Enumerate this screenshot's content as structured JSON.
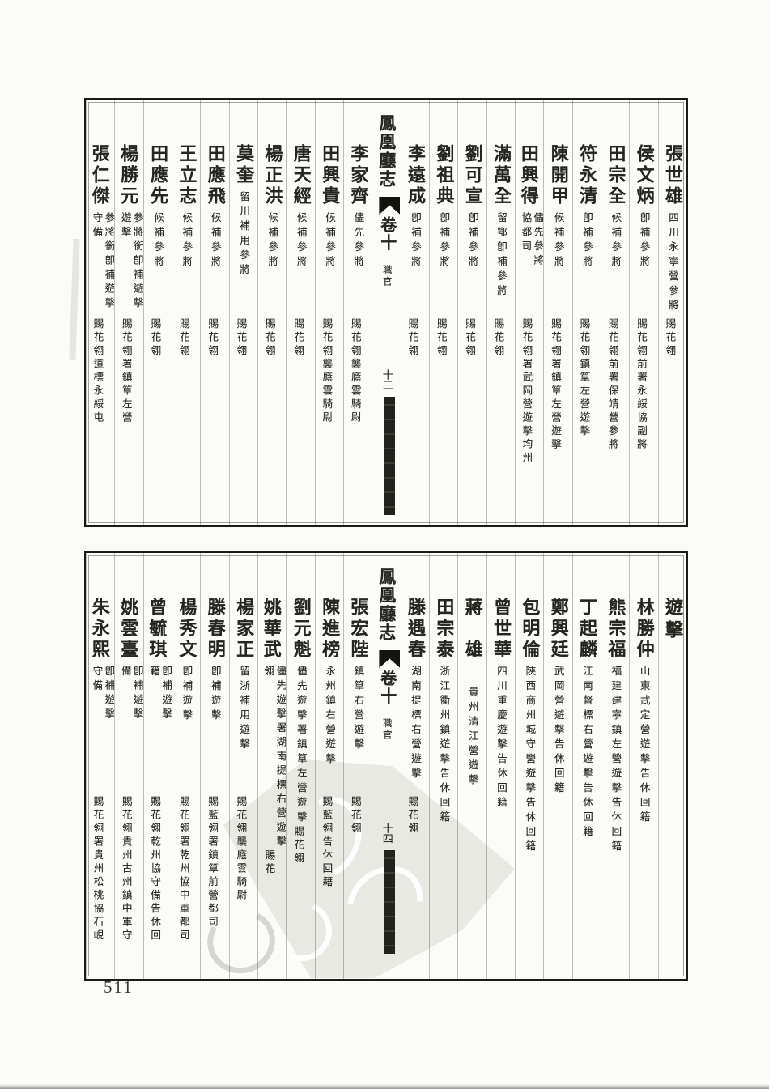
{
  "page": {
    "number": "511"
  },
  "book": {
    "title": "鳳凰廳志",
    "chapter": "卷十",
    "section": "職官"
  },
  "colors": {
    "ink": "#26251f",
    "paper": "#fbfbf8",
    "bar": "#23231e"
  },
  "blocks": [
    {
      "id": "top",
      "folio": "十三",
      "columns": [
        {
          "type": "entry",
          "name": "張世雄",
          "note": "四川永寧營參將",
          "honor": "賜花翎"
        },
        {
          "type": "entry",
          "name": "侯文炳",
          "note": "卽補參將",
          "honor": "賜花翎前署永綏協副將"
        },
        {
          "type": "entry",
          "name": "田宗全",
          "note": "候補參將",
          "honor": "賜花翎前署保靖營參將"
        },
        {
          "type": "entry",
          "name": "符永清",
          "note": "卽補參將",
          "honor": "賜花翎鎮筸左營遊擊"
        },
        {
          "type": "entry",
          "name": "陳開甲",
          "note": "候補參將",
          "honor": "賜花翎署鎮筸左營遊擊"
        },
        {
          "type": "entry",
          "name": "田興得",
          "note": "儘先參將",
          "wrap": "協都司",
          "honor": "賜花翎署武岡營遊擊均州"
        },
        {
          "type": "entry",
          "name": "滿萬全",
          "note": "留鄂卽補參將",
          "honor": "賜花翎"
        },
        {
          "type": "entry",
          "name": "劉可宣",
          "note": "卽補參將",
          "honor": "賜花翎"
        },
        {
          "type": "entry",
          "name": "劉祖典",
          "note": "卽補參將",
          "honor": "賜花翎"
        },
        {
          "type": "entry",
          "name": "李遠成",
          "note": "卽補參將",
          "honor": "賜花翎"
        },
        {
          "type": "title"
        },
        {
          "type": "entry",
          "name": "李家齊",
          "note": "儘先參將",
          "honor": "賜花翎襲廕雲騎尉"
        },
        {
          "type": "entry",
          "name": "田興貴",
          "note": "候補參將",
          "honor": "賜花翎襲廕雲騎尉"
        },
        {
          "type": "entry",
          "name": "唐天經",
          "note": "候補參將",
          "honor": "賜花翎"
        },
        {
          "type": "entry",
          "name": "楊正洪",
          "note": "候補參將",
          "honor": "賜花翎"
        },
        {
          "type": "entry",
          "name": "莫奎",
          "note": "留川補用參將",
          "honor": "賜花翎"
        },
        {
          "type": "entry",
          "name": "田應飛",
          "note": "候補參將",
          "honor": "賜花翎"
        },
        {
          "type": "entry",
          "name": "王立志",
          "note": "候補參將",
          "honor": "賜花翎"
        },
        {
          "type": "entry",
          "name": "田應先",
          "note": "候補參將",
          "honor": "賜花翎"
        },
        {
          "type": "entry",
          "name": "楊勝元",
          "note": "參將銜卽補遊擊",
          "wrap": "遊擊",
          "honor": "賜花翎署鎮筸左營"
        },
        {
          "type": "entry",
          "name": "張仁傑",
          "note": "參將銜卽補遊擊",
          "wrap": "守備",
          "honor": "賜花翎道標永綏屯"
        }
      ]
    },
    {
      "id": "bot",
      "folio": "十四",
      "columns": [
        {
          "type": "header",
          "label": "遊擊"
        },
        {
          "type": "entry",
          "name": "林勝仲",
          "note": "山東武定營遊擊告休回籍"
        },
        {
          "type": "entry",
          "name": "熊宗福",
          "note": "福建建寧鎮左營遊擊告休回籍"
        },
        {
          "type": "entry",
          "name": "丁起麟",
          "note": "江南督標右營遊擊告休回籍"
        },
        {
          "type": "entry",
          "name": "鄭興廷",
          "note": "武岡營遊擊告休回籍"
        },
        {
          "type": "entry",
          "name": "包明倫",
          "note": "陝西商州城守營遊擊告休回籍"
        },
        {
          "type": "entry",
          "name": "曾世華",
          "note": "四川重慶遊擊告休回籍"
        },
        {
          "type": "entry",
          "name": "蔣雄",
          "spaced": true,
          "note": "貴州清江營遊擊"
        },
        {
          "type": "entry",
          "name": "田宗泰",
          "note": "浙江衢州鎮遊擊告休回籍"
        },
        {
          "type": "entry",
          "name": "滕遇春",
          "note": "湖南提標右營遊擊",
          "honor": "賜花翎"
        },
        {
          "type": "title"
        },
        {
          "type": "entry",
          "name": "張宏陛",
          "note": "鎮筸右營遊擊",
          "honor": "賜花翎"
        },
        {
          "type": "entry",
          "name": "陳進榜",
          "note": "永州鎮右營遊擊",
          "honor": "賜藍翎告休回籍"
        },
        {
          "type": "entry",
          "name": "劉元魁",
          "note": "儘先遊擊署鎮筸左營遊擊",
          "honor": "賜花翎"
        },
        {
          "type": "entry",
          "name": "姚華武",
          "note": "儘先遊擊署湖南提標右營遊擊",
          "wrap": "翎",
          "honor": "賜花"
        },
        {
          "type": "entry",
          "name": "楊家正",
          "note": "留浙補用遊擊",
          "honor": "賜花翎襲廕雲騎尉"
        },
        {
          "type": "entry",
          "name": "滕春明",
          "note": "卽補遊擊",
          "honor": "賜藍翎署鎮筸前營都司"
        },
        {
          "type": "entry",
          "name": "楊秀文",
          "note": "卽補遊擊",
          "honor": "賜花翎署乾州協中軍都司"
        },
        {
          "type": "entry",
          "name": "曾毓琪",
          "note": "卽補遊擊",
          "wrap": "籍",
          "honor": "賜花翎乾州協守備告休回"
        },
        {
          "type": "entry",
          "name": "姚雲臺",
          "note": "卽補遊擊",
          "wrap": "備",
          "honor": "賜花翎貴州古州鎮中軍守"
        },
        {
          "type": "entry",
          "name": "朱永熙",
          "note": "卽補遊擊",
          "wrap": "守備",
          "honor": "賜花翎署貴州松桃協石峴"
        }
      ]
    }
  ]
}
